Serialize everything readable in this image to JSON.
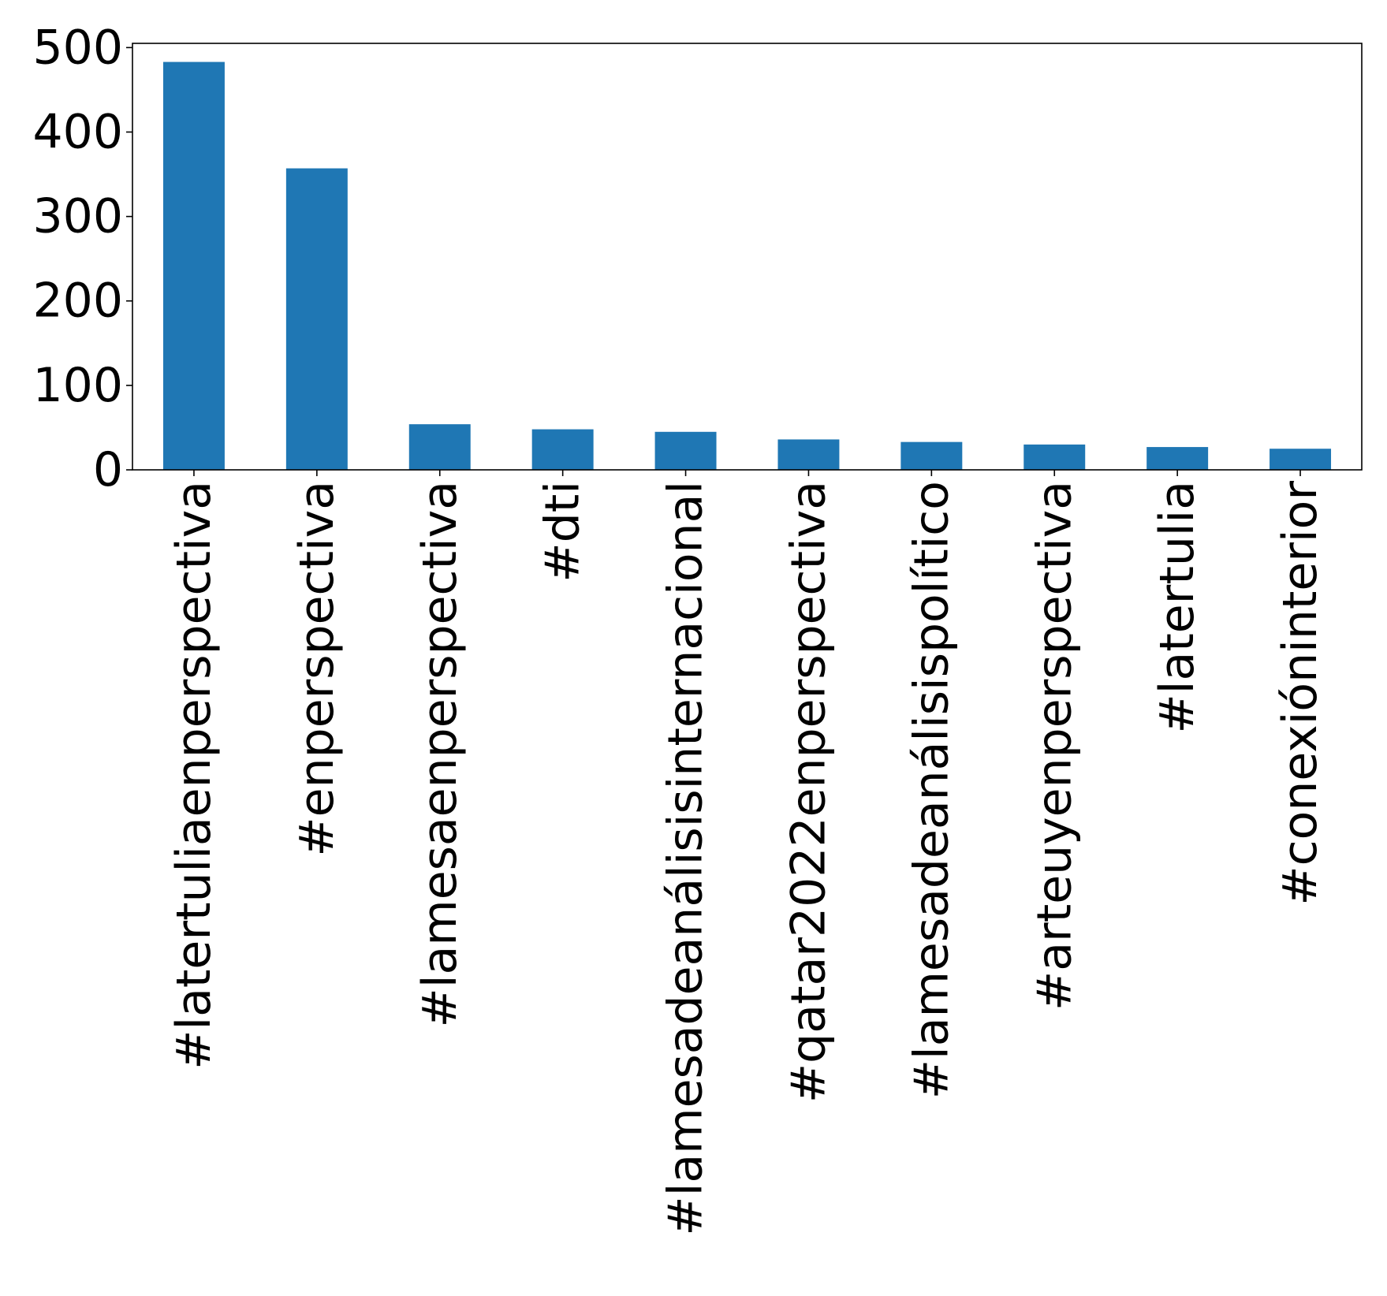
{
  "chart_data": {
    "type": "bar",
    "title": "",
    "xlabel": "",
    "ylabel": "",
    "categories": [
      "#latertuliaenperspectiva",
      "#enperspectiva",
      "#lamesaenperspectiva",
      "#dti",
      "#lamesadeanálisisinternacional",
      "#qatar2022enperspectiva",
      "#lamesadeanálisispolítico",
      "#arteuyenperspectiva",
      "#latertulia",
      "#conexióninterior"
    ],
    "values": [
      483,
      357,
      54,
      48,
      45,
      36,
      33,
      30,
      27,
      25
    ],
    "ylim": [
      0,
      505
    ],
    "yticks": [
      0,
      100,
      200,
      300,
      400,
      500
    ],
    "ytick_labels": [
      "0",
      "100",
      "200",
      "300",
      "400",
      "500"
    ],
    "bar_color": "#1f77b4",
    "grid": false,
    "legend": "none"
  }
}
